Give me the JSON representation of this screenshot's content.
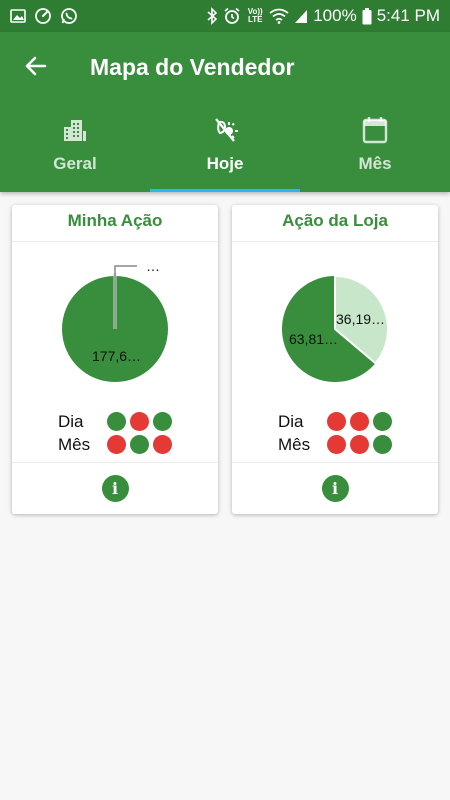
{
  "status_bar": {
    "left_icons": [
      "image-icon",
      "speedometer-icon",
      "whatsapp-icon"
    ],
    "right_icons": [
      "bluetooth-icon",
      "alarm-icon",
      "volte-icon",
      "wifi-icon",
      "signal-icon",
      "battery-icon"
    ],
    "volte": "Vo)) LTE",
    "battery": "100%",
    "time": "5:41 PM"
  },
  "appbar": {
    "title": "Mapa do Vendedor",
    "back_icon": "arrow-left-icon",
    "tabs": [
      {
        "label": "Geral",
        "icon": "buildings-icon",
        "active": false
      },
      {
        "label": "Hoje",
        "icon": "day-night-icon",
        "active": true
      },
      {
        "label": "Mês",
        "icon": "calendar-icon",
        "active": false
      }
    ],
    "indicator_color": "#29b6f6"
  },
  "colors": {
    "primary": "#388e3c",
    "status_bar": "#2e7d32",
    "good": "#388e3c",
    "bad": "#e53935",
    "pie_light": "#c8e6c9"
  },
  "cards": [
    {
      "title": "Minha Ação",
      "chart_data": {
        "type": "pie",
        "values": [
          177.6,
          0
        ],
        "labels": [
          "177,6…",
          "…"
        ],
        "colors": [
          "#388e3c",
          "#c8e6c9"
        ]
      },
      "rows": [
        {
          "label": "Dia",
          "dots": [
            "good",
            "bad",
            "good"
          ]
        },
        {
          "label": "Mês",
          "dots": [
            "bad",
            "good",
            "bad"
          ]
        }
      ],
      "info_icon": "info-icon",
      "info_glyph": "i"
    },
    {
      "title": "Ação da Loja",
      "chart_data": {
        "type": "pie",
        "values": [
          63.81,
          36.19
        ],
        "labels": [
          "63,81…",
          "36,19…"
        ],
        "colors": [
          "#388e3c",
          "#c8e6c9"
        ]
      },
      "rows": [
        {
          "label": "Dia",
          "dots": [
            "bad",
            "bad",
            "good"
          ]
        },
        {
          "label": "Mês",
          "dots": [
            "bad",
            "bad",
            "good"
          ]
        }
      ],
      "info_icon": "info-icon",
      "info_glyph": "i"
    }
  ]
}
